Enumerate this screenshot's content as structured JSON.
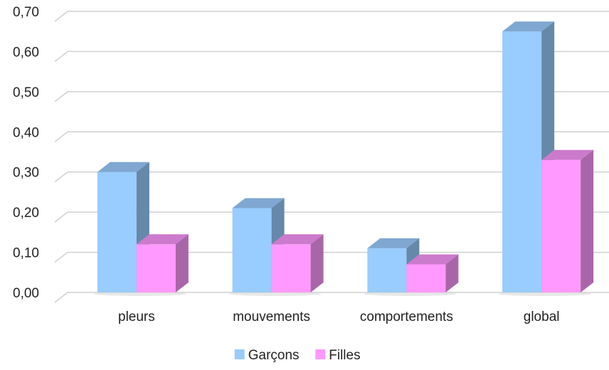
{
  "chart_data": {
    "type": "bar",
    "title": "",
    "xlabel": "",
    "ylabel": "",
    "categories": [
      "pleurs",
      "mouvements",
      "comportements",
      "global"
    ],
    "series": [
      {
        "name": "Garçons",
        "values": [
          0.3,
          0.21,
          0.11,
          0.65
        ],
        "color": "#99CCFF",
        "side_color": "#6688AA",
        "top_color": "#7FA7D1"
      },
      {
        "name": "Filles",
        "values": [
          0.12,
          0.12,
          0.07,
          0.33
        ],
        "color": "#FF99FF",
        "side_color": "#A866A8",
        "top_color": "#CC7ACC"
      }
    ],
    "ylim": [
      0,
      0.7
    ],
    "yticks": [
      "0,00",
      "0,10",
      "0,20",
      "0,30",
      "0,40",
      "0,50",
      "0,60",
      "0,70"
    ],
    "grid": true,
    "legend": "bottom",
    "style": "3d-clustered-column"
  }
}
